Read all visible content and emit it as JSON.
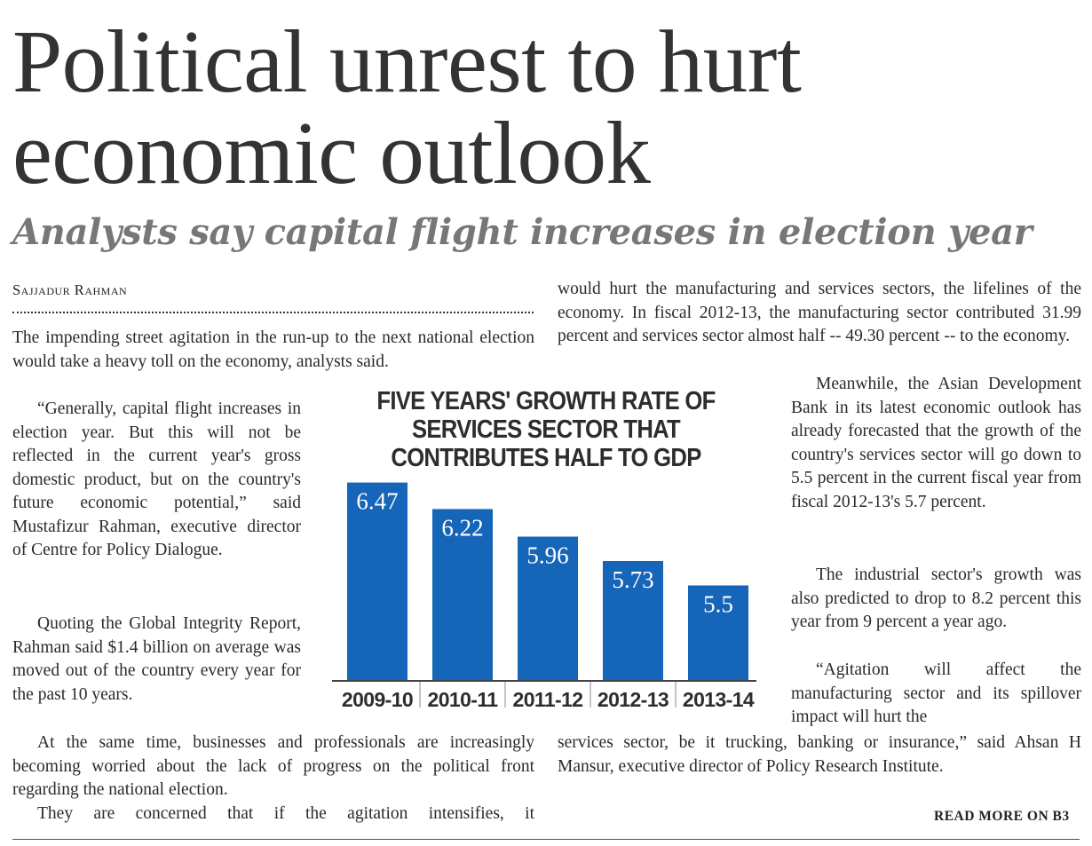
{
  "headline": "Political unrest to hurt economic outlook",
  "subheadline": "Analysts say capital flight increases in election year",
  "byline": "Sajjadur Rahman",
  "paragraphs": {
    "p1": "The impending street agitation in the run-up to the next national election would take a heavy toll on the economy, analysts said.",
    "p2": "“Generally, capital flight increases in election year. But this will not be reflected in the current year's gross domestic product, but on the country's future economic potential,” said Mustafizur Rahman, executive director of Centre for Policy Dialogue.",
    "p3": "Quoting the Global Integrity Report, Rahman said $1.4 billion on average was moved out of the country every year for the past 10 years.",
    "p4": "At the same time, businesses and professionals are increasingly becoming worried about the lack of progress on the political front regarding the national election.",
    "p5": "They are concerned that if the agitation intensifies, it",
    "p6": "would hurt the manufacturing and services sectors, the lifelines of the economy. In fiscal 2012-13, the manufacturing sector contributed 31.99 percent and services sector almost half -- 49.30 percent -- to the economy.",
    "p7": "Meanwhile, the Asian Development Bank in its latest economic outlook has already forecasted that the growth of the country's services sector will go down to 5.5 percent in the current fiscal year from fiscal 2012-13's 5.7 percent.",
    "p8": "The industrial sector's growth was also predicted to drop to 8.2 percent this year from 9 percent a year ago.",
    "p9": "“Agitation will affect the manufacturing sector and its spillover impact will hurt the",
    "p10": "services sector, be it trucking, banking or insurance,” said Ahsan H Mansur, executive director of Policy Research Institute."
  },
  "read_more": "READ MORE ON B3",
  "colors": {
    "bar": "#1565b8",
    "axis": "#444444"
  },
  "chart_data": {
    "type": "bar",
    "title": "FIVE YEARS' GROWTH RATE OF SERVICES SECTOR THAT CONTRIBUTES HALF TO GDP",
    "categories": [
      "2009-10",
      "2010-11",
      "2011-12",
      "2012-13",
      "2013-14"
    ],
    "values": [
      6.47,
      6.22,
      5.96,
      5.73,
      5.5
    ],
    "value_labels": [
      "6.47",
      "6.22",
      "5.96",
      "5.73",
      "5.5"
    ],
    "xlabel": "",
    "ylabel": "",
    "ylim": [
      4.6,
      6.5
    ],
    "grid": false
  }
}
